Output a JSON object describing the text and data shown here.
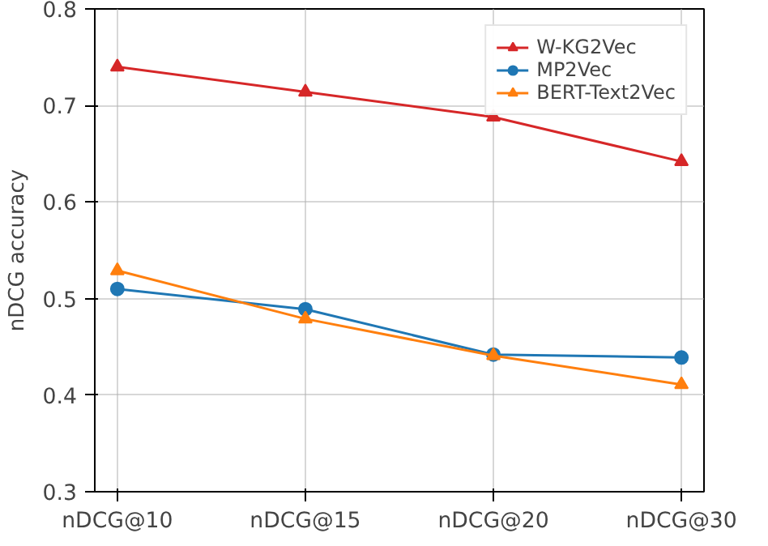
{
  "chart_data": {
    "type": "line",
    "ylabel": "nDCG accuracy",
    "categories": [
      "nDCG@10",
      "nDCG@15",
      "nDCG@20",
      "nDCG@30"
    ],
    "series": [
      {
        "name": "W-KG2Vec",
        "color": "#d62728",
        "marker": "triangle",
        "values": [
          0.74,
          0.714,
          0.688,
          0.642
        ]
      },
      {
        "name": "MP2Vec",
        "color": "#1f77b4",
        "marker": "circle",
        "values": [
          0.51,
          0.489,
          0.442,
          0.439
        ]
      },
      {
        "name": "BERT-Text2Vec",
        "color": "#ff7f0e",
        "marker": "triangle",
        "values": [
          0.529,
          0.479,
          0.441,
          0.411
        ]
      }
    ],
    "ylim": [
      0.3,
      0.8
    ],
    "yticks": [
      0.3,
      0.4,
      0.5,
      0.6,
      0.7,
      0.8
    ],
    "grid": true,
    "legend": "top right",
    "line_style": "solid"
  }
}
